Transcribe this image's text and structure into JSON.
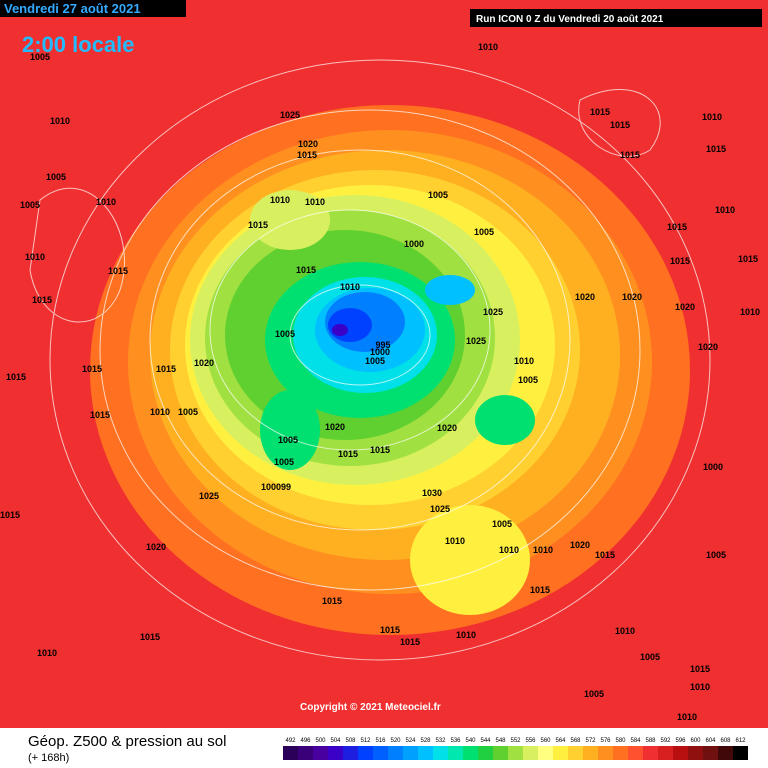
{
  "header": {
    "date": "Vendredi 27 août 2021",
    "time": "2:00 locale",
    "run": "Run ICON 0 Z du Vendredi 20 août 2021"
  },
  "footer": {
    "title": "Géop. Z500 & pression au sol",
    "lead": "(+ 168h)",
    "copyright": "Copyright © 2021 Meteociel.fr"
  },
  "legend": {
    "values": [
      492,
      496,
      500,
      504,
      508,
      512,
      516,
      520,
      524,
      528,
      532,
      536,
      540,
      544,
      548,
      552,
      556,
      560,
      564,
      568,
      572,
      576,
      580,
      584,
      588,
      592,
      596,
      600,
      604,
      608,
      612
    ],
    "colors": [
      "#2b0058",
      "#3a007a",
      "#48009e",
      "#3a00c8",
      "#1e1ee0",
      "#0040ff",
      "#0060ff",
      "#0080ff",
      "#00a0ff",
      "#00c0ff",
      "#00e0e8",
      "#00e8b0",
      "#00e070",
      "#20d040",
      "#60d030",
      "#a0e040",
      "#d8f060",
      "#ffff80",
      "#fff040",
      "#ffd030",
      "#ffb020",
      "#ff9020",
      "#ff7020",
      "#ff5030",
      "#f03030",
      "#d82020",
      "#b81010",
      "#901010",
      "#701010",
      "#400808",
      "#000000"
    ]
  },
  "isobar_labels": [
    "1005",
    "1010",
    "1010",
    "1025",
    "1020",
    "1015",
    "1015",
    "1015",
    "1010",
    "1015",
    "1015",
    "1005",
    "1005",
    "1010",
    "1015",
    "1010",
    "1010",
    "1005",
    "1005",
    "1000",
    "1010",
    "1015",
    "1010",
    "1015",
    "1015",
    "1015",
    "1010",
    "1015",
    "1015",
    "1010",
    "1020",
    "1020",
    "1025",
    "1020",
    "1005",
    "995",
    "1000",
    "1005",
    "1025",
    "1010",
    "1005",
    "1020",
    "1015",
    "1015",
    "1020",
    "1015",
    "1010",
    "1005",
    "1020",
    "1020",
    "1015",
    "1005",
    "1015",
    "1015",
    "1000",
    "1005",
    "100099",
    "1025",
    "1030",
    "1025",
    "1015",
    "1005",
    "1010",
    "1010",
    "1010",
    "1020",
    "1015",
    "1020",
    "1005",
    "1015",
    "1015",
    "1015",
    "1010",
    "1010",
    "1005",
    "1015",
    "1015",
    "1010",
    "1015",
    "1010",
    "1010",
    "1005"
  ]
}
